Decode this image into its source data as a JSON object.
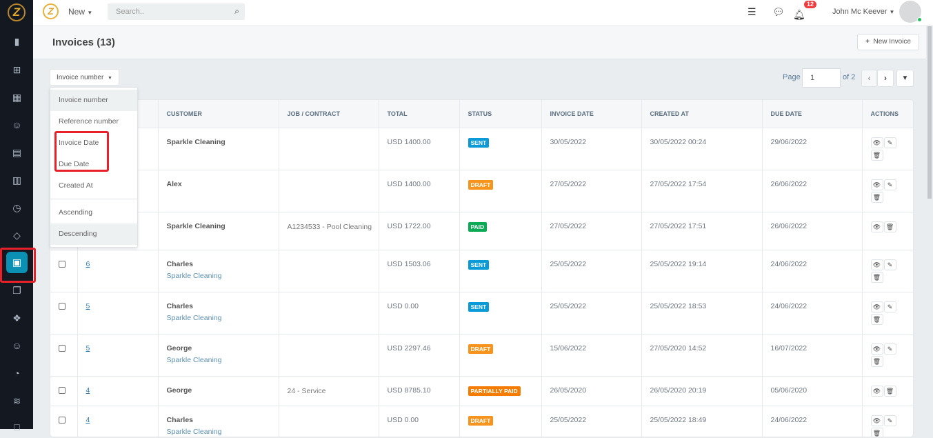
{
  "sidebar": {
    "logo_letter": "Z",
    "items": [
      {
        "icon": "chart-bar-icon",
        "glyph": "▮"
      },
      {
        "icon": "briefcase-icon",
        "glyph": "⊞"
      },
      {
        "icon": "calendar-icon",
        "glyph": "▦"
      },
      {
        "icon": "users-icon",
        "glyph": "☺"
      },
      {
        "icon": "building-icon",
        "glyph": "▤"
      },
      {
        "icon": "map-icon",
        "glyph": "▥"
      },
      {
        "icon": "clock-icon",
        "glyph": "◷"
      },
      {
        "icon": "tag-icon",
        "glyph": "◇"
      },
      {
        "icon": "invoice-calculator-icon",
        "glyph": "▣",
        "active": true
      },
      {
        "icon": "documents-icon",
        "glyph": "❐"
      },
      {
        "icon": "boxes-icon",
        "glyph": "❖"
      },
      {
        "icon": "user-icon",
        "glyph": "☺"
      },
      {
        "icon": "pie-chart-icon",
        "glyph": "◔"
      },
      {
        "icon": "layers-icon",
        "glyph": "≋"
      },
      {
        "icon": "square-icon",
        "glyph": "□"
      }
    ]
  },
  "topbar": {
    "logo_letter": "Z",
    "new_label": "New",
    "search_placeholder": "Search..",
    "notification_count": "12",
    "user_name": "John Mc Keever"
  },
  "header": {
    "title": "Invoices (13)",
    "new_invoice_label": "New Invoice"
  },
  "sort": {
    "selected": "Invoice number",
    "options": [
      "Invoice number",
      "Reference number",
      "Invoice Date",
      "Due Date",
      "Created At"
    ],
    "order_options": [
      "Ascending",
      "Descending"
    ],
    "selected_order": "Descending"
  },
  "pager": {
    "label": "Page",
    "current": "1",
    "of": "of 2"
  },
  "colors": {
    "sent": "#0a9ad8",
    "draft": "#f7941d",
    "paid": "#0caa55",
    "partially_paid": "#f57c00",
    "accent": "#0b8fb3"
  },
  "table": {
    "columns": [
      "",
      "",
      "CUSTOMER",
      "JOB / CONTRACT",
      "TOTAL",
      "STATUS",
      "INVOICE DATE",
      "CREATED AT",
      "DUE DATE",
      "ACTIONS"
    ],
    "rows": [
      {
        "number": "",
        "customer": "Sparkle Cleaning",
        "sub": "",
        "job": "",
        "total": "USD 1400.00",
        "status": "SENT",
        "status_key": "sent",
        "invoice_date": "30/05/2022",
        "created_at": "30/05/2022 00:24",
        "due_date": "29/06/2022",
        "edit": true
      },
      {
        "number": "",
        "customer": "Alex",
        "sub": "",
        "job": "",
        "total": "USD 1400.00",
        "status": "DRAFT",
        "status_key": "draft",
        "invoice_date": "27/05/2022",
        "created_at": "27/05/2022 17:54",
        "due_date": "26/06/2022",
        "edit": true
      },
      {
        "number": "",
        "customer": "Sparkle Cleaning",
        "sub": "",
        "job": "A1234533 - Pool Cleaning",
        "total": "USD 1722.00",
        "status": "PAID",
        "status_key": "paid",
        "invoice_date": "27/05/2022",
        "created_at": "27/05/2022 17:51",
        "due_date": "26/06/2022",
        "edit": false
      },
      {
        "number": "6",
        "customer": "Charles",
        "sub": "Sparkle Cleaning",
        "job": "",
        "total": "USD 1503.06",
        "status": "SENT",
        "status_key": "sent",
        "invoice_date": "25/05/2022",
        "created_at": "25/05/2022 19:14",
        "due_date": "24/06/2022",
        "edit": true
      },
      {
        "number": "5",
        "customer": "Charles",
        "sub": "Sparkle Cleaning",
        "job": "",
        "total": "USD 0.00",
        "status": "SENT",
        "status_key": "sent",
        "invoice_date": "25/05/2022",
        "created_at": "25/05/2022 18:53",
        "due_date": "24/06/2022",
        "edit": true
      },
      {
        "number": "5",
        "customer": "George",
        "sub": "Sparkle Cleaning",
        "job": "",
        "total": "USD 2297.46",
        "status": "DRAFT",
        "status_key": "draft",
        "invoice_date": "15/06/2022",
        "created_at": "27/05/2020 14:52",
        "due_date": "16/07/2022",
        "edit": true
      },
      {
        "number": "4",
        "customer": "George",
        "sub": "",
        "job": "24 - Service",
        "total": "USD 8785.10",
        "status": "PARTIALLY PAID",
        "status_key": "partially_paid",
        "invoice_date": "26/05/2020",
        "created_at": "26/05/2020 20:19",
        "due_date": "05/06/2020",
        "edit": false
      },
      {
        "number": "4",
        "customer": "Charles",
        "sub": "Sparkle Cleaning",
        "job": "",
        "total": "USD 0.00",
        "status": "DRAFT",
        "status_key": "draft",
        "invoice_date": "25/05/2022",
        "created_at": "25/05/2022 18:49",
        "due_date": "24/06/2022",
        "edit": true
      }
    ]
  }
}
